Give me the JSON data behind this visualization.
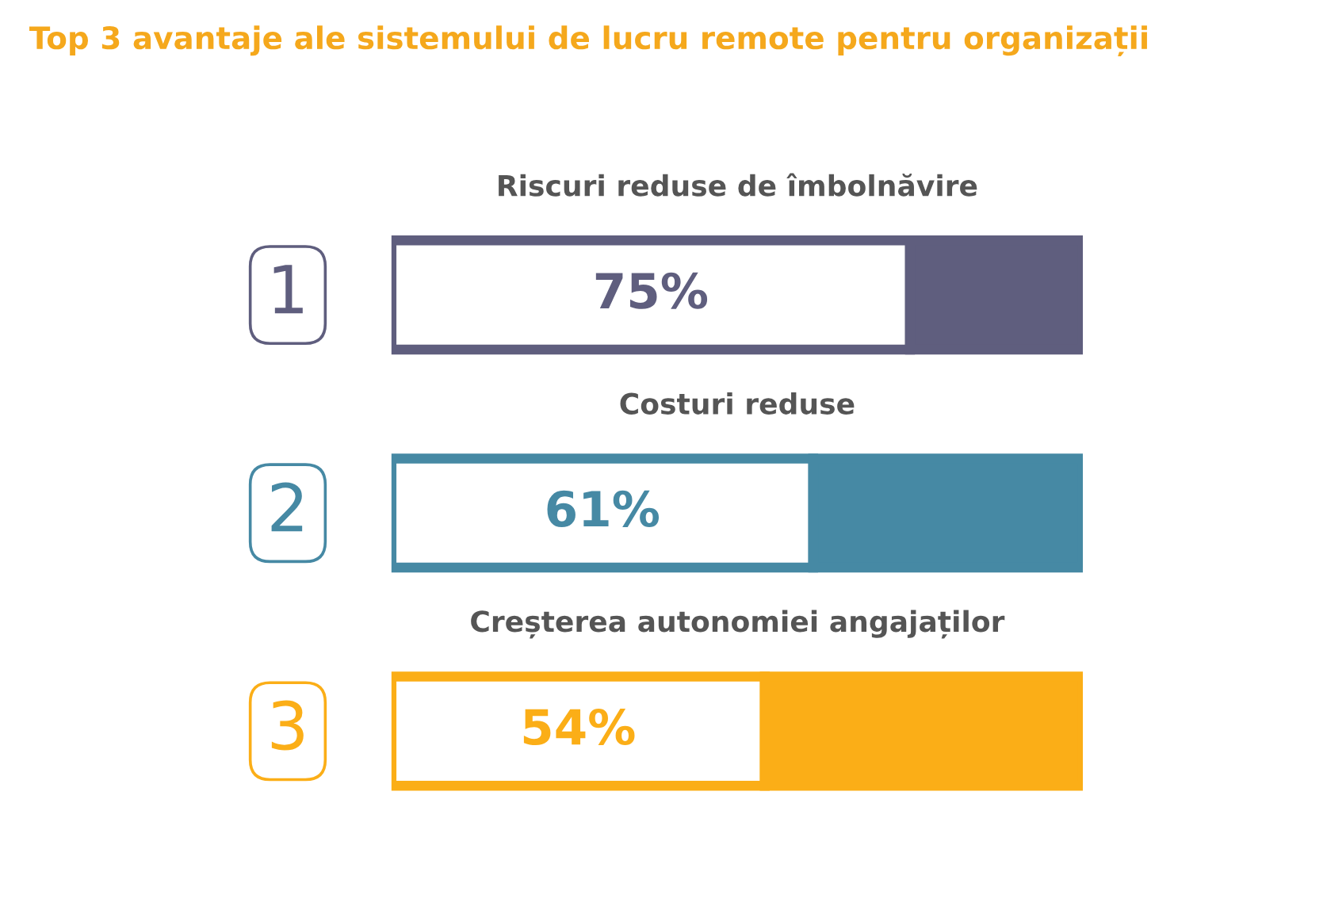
{
  "chart_data": {
    "type": "bar",
    "orientation": "horizontal",
    "stacked": true,
    "title": "Top 3 avantaje ale sistemului de lucru remote pentru organizații",
    "categories": [
      "Riscuri reduse de îmbolnăvire",
      "Costuri reduse",
      "Creșterea autonomiei angajaților"
    ],
    "series": [
      {
        "colors": [
          "#ffffff",
          "#ffffff",
          "#ffffff"
        ],
        "values": [
          75,
          61,
          54
        ],
        "value_labels": [
          "75%",
          "61%",
          "54%"
        ]
      },
      {
        "colors": [
          "#5f5e7e",
          "#4689a4",
          "#fbae17"
        ],
        "values": [
          25,
          39,
          46
        ]
      }
    ],
    "annotations": [
      "1",
      "2",
      "3"
    ],
    "xlim": [
      0,
      100
    ]
  }
}
